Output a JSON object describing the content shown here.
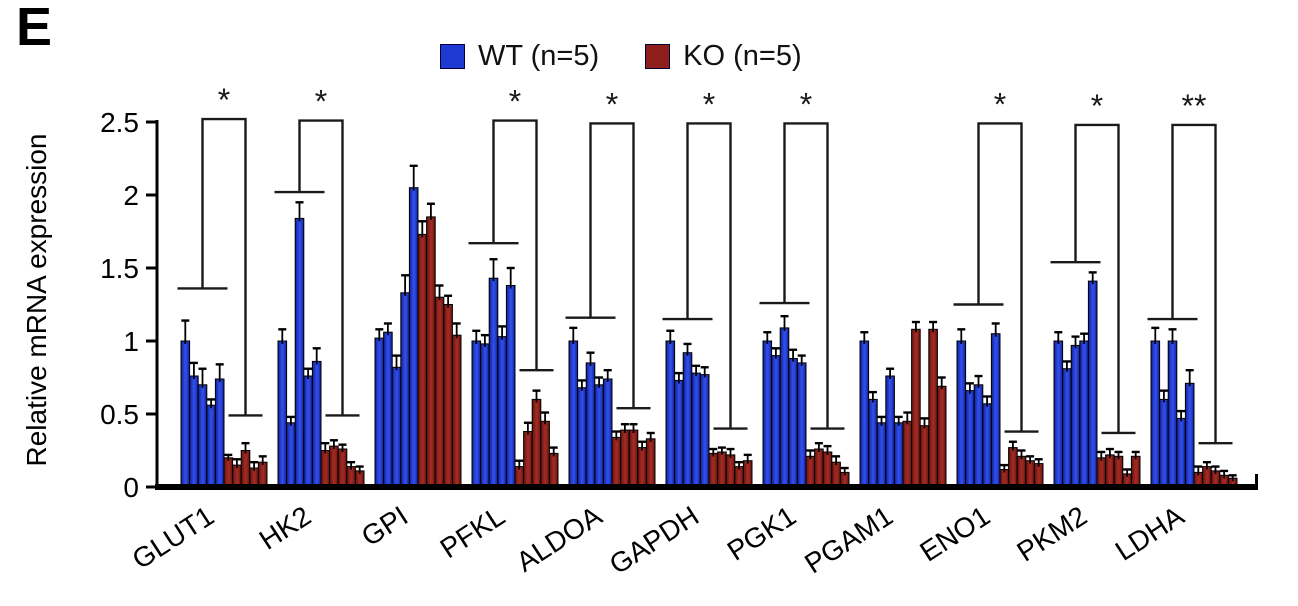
{
  "figure": {
    "panel_label": "E",
    "background": "#ffffff"
  },
  "legend": {
    "items": [
      {
        "label": "WT (n=5)",
        "color": "#1e3ad2"
      },
      {
        "label": "KO (n=5)",
        "color": "#8e1f1b"
      }
    ]
  },
  "chart_data": {
    "type": "bar",
    "title": "",
    "xlabel": "",
    "ylabel": "Relative mRNA expression",
    "ylim": [
      0,
      2.5
    ],
    "yticks": [
      0,
      0.5,
      1,
      1.5,
      2,
      2.5
    ],
    "grid": false,
    "legend_position": "top",
    "bars_per_group_per_series": 5,
    "categories": [
      "GLUT1",
      "HK2",
      "GPI",
      "PFKL",
      "ALDOA",
      "GAPDH",
      "PGK1",
      "PGAM1",
      "ENO1",
      "PKM2",
      "LDHA"
    ],
    "series": [
      {
        "name": "WT (n=5)",
        "color": "#1e3ad2",
        "values": [
          [
            1.0,
            0.76,
            0.7,
            0.56,
            0.74
          ],
          [
            1.0,
            0.44,
            1.84,
            0.76,
            0.86
          ],
          [
            1.02,
            1.06,
            0.82,
            1.33,
            2.05
          ],
          [
            1.0,
            0.98,
            1.43,
            1.03,
            1.38
          ],
          [
            1.0,
            0.68,
            0.85,
            0.7,
            0.74
          ],
          [
            1.0,
            0.73,
            0.92,
            0.78,
            0.77
          ],
          [
            1.0,
            0.9,
            1.09,
            0.88,
            0.85
          ],
          [
            1.0,
            0.6,
            0.44,
            0.76,
            0.44
          ],
          [
            1.0,
            0.66,
            0.7,
            0.57,
            1.05
          ],
          [
            1.0,
            0.81,
            0.97,
            1.0,
            1.41
          ],
          [
            1.0,
            0.6,
            1.0,
            0.47,
            0.71
          ]
        ],
        "errors": [
          [
            0.14,
            0.09,
            0.11,
            0.04,
            0.1
          ],
          [
            0.08,
            0.04,
            0.11,
            0.05,
            0.09
          ],
          [
            0.06,
            0.06,
            0.08,
            0.12,
            0.15
          ],
          [
            0.07,
            0.06,
            0.13,
            0.07,
            0.12
          ],
          [
            0.09,
            0.05,
            0.07,
            0.05,
            0.06
          ],
          [
            0.07,
            0.05,
            0.06,
            0.05,
            0.05
          ],
          [
            0.06,
            0.05,
            0.08,
            0.06,
            0.05
          ],
          [
            0.06,
            0.05,
            0.04,
            0.05,
            0.04
          ],
          [
            0.08,
            0.05,
            0.06,
            0.05,
            0.07
          ],
          [
            0.06,
            0.05,
            0.06,
            0.05,
            0.06
          ],
          [
            0.09,
            0.06,
            0.08,
            0.05,
            0.09
          ]
        ]
      },
      {
        "name": "KO (n=5)",
        "color": "#8e1f1b",
        "values": [
          [
            0.2,
            0.15,
            0.25,
            0.13,
            0.17
          ],
          [
            0.25,
            0.28,
            0.26,
            0.14,
            0.11
          ],
          [
            1.73,
            1.85,
            1.3,
            1.25,
            1.04
          ],
          [
            0.14,
            0.38,
            0.6,
            0.45,
            0.23
          ],
          [
            0.34,
            0.39,
            0.39,
            0.27,
            0.33
          ],
          [
            0.23,
            0.24,
            0.22,
            0.14,
            0.18
          ],
          [
            0.21,
            0.26,
            0.24,
            0.17,
            0.1
          ],
          [
            0.45,
            1.08,
            0.42,
            1.08,
            0.69
          ],
          [
            0.12,
            0.27,
            0.21,
            0.18,
            0.16
          ],
          [
            0.2,
            0.22,
            0.21,
            0.09,
            0.21
          ],
          [
            0.1,
            0.14,
            0.11,
            0.08,
            0.06
          ]
        ],
        "errors": [
          [
            0.02,
            0.04,
            0.05,
            0.04,
            0.04
          ],
          [
            0.05,
            0.04,
            0.03,
            0.03,
            0.03
          ],
          [
            0.09,
            0.09,
            0.08,
            0.06,
            0.08
          ],
          [
            0.04,
            0.06,
            0.06,
            0.06,
            0.04
          ],
          [
            0.04,
            0.04,
            0.04,
            0.04,
            0.04
          ],
          [
            0.03,
            0.03,
            0.04,
            0.03,
            0.04
          ],
          [
            0.04,
            0.04,
            0.04,
            0.04,
            0.03
          ],
          [
            0.06,
            0.05,
            0.05,
            0.05,
            0.06
          ],
          [
            0.03,
            0.04,
            0.04,
            0.03,
            0.03
          ],
          [
            0.04,
            0.04,
            0.03,
            0.03,
            0.03
          ],
          [
            0.04,
            0.03,
            0.03,
            0.03,
            0.02
          ]
        ]
      }
    ],
    "significance": [
      {
        "category": "GLUT1",
        "label": "*",
        "wt_arm": 1.36,
        "ko_arm": 0.49,
        "top": 2.52
      },
      {
        "category": "HK2",
        "label": "*",
        "wt_arm": 2.02,
        "ko_arm": 0.49,
        "top": 2.51
      },
      {
        "category": "PFKL",
        "label": "*",
        "wt_arm": 1.67,
        "ko_arm": 0.8,
        "top": 2.51
      },
      {
        "category": "ALDOA",
        "label": "*",
        "wt_arm": 1.16,
        "ko_arm": 0.54,
        "top": 2.49
      },
      {
        "category": "GAPDH",
        "label": "*",
        "wt_arm": 1.15,
        "ko_arm": 0.4,
        "top": 2.49
      },
      {
        "category": "PGK1",
        "label": "*",
        "wt_arm": 1.26,
        "ko_arm": 0.4,
        "top": 2.49
      },
      {
        "category": "ENO1",
        "label": "*",
        "wt_arm": 1.25,
        "ko_arm": 0.38,
        "top": 2.49
      },
      {
        "category": "PKM2",
        "label": "*",
        "wt_arm": 1.54,
        "ko_arm": 0.37,
        "top": 2.48
      },
      {
        "category": "LDHA",
        "label": "**",
        "wt_arm": 1.15,
        "ko_arm": 0.3,
        "top": 2.48
      }
    ]
  }
}
